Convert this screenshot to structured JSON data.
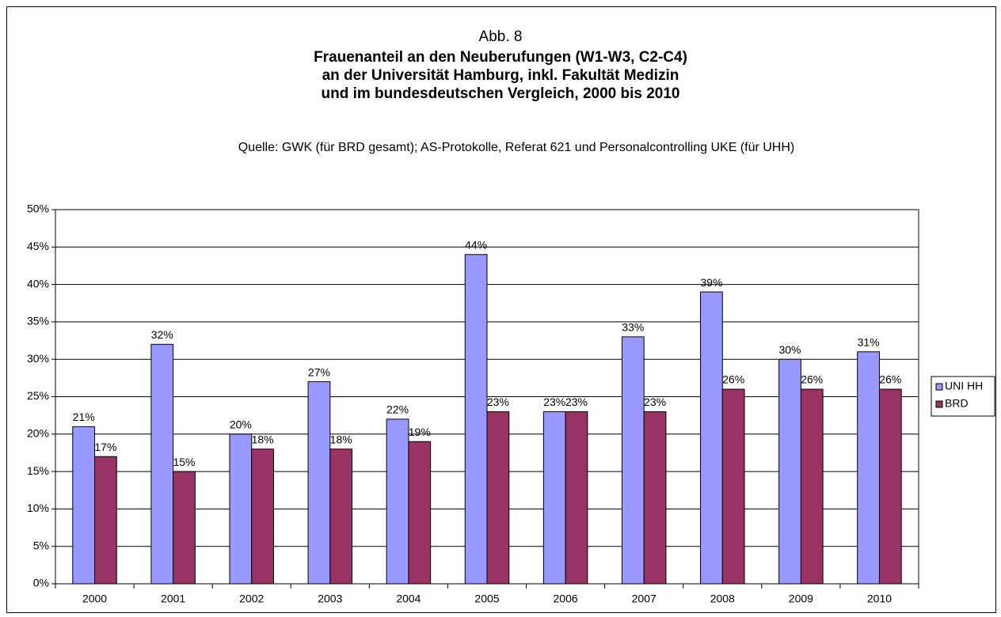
{
  "chart_data": {
    "type": "bar",
    "title": "Abb. 8",
    "subtitle": [
      "Frauenanteil an den Neuberufungen (W1-W3, C2-C4)",
      "an der Universität Hamburg, inkl. Fakultät Medizin",
      "und im bundesdeutschen Vergleich, 2000 bis 2010"
    ],
    "source": "Quelle: GWK (für BRD gesamt); AS-Protokolle, Referat 621 und Personalcontrolling UKE (für UHH)",
    "categories": [
      "2000",
      "2001",
      "2002",
      "2003",
      "2004",
      "2005",
      "2006",
      "2007",
      "2008",
      "2009",
      "2010"
    ],
    "series": [
      {
        "name": "UNI HH",
        "color": "#9999ff",
        "values": [
          21,
          32,
          20,
          27,
          22,
          44,
          23,
          33,
          39,
          30,
          31
        ],
        "value_labels": [
          "21%",
          "32%",
          "20%",
          "27%",
          "22%",
          "44%",
          "23%",
          "33%",
          "39%",
          "30%",
          "31%"
        ]
      },
      {
        "name": "BRD",
        "color": "#993366",
        "values": [
          17,
          15,
          18,
          18,
          19,
          23,
          23,
          23,
          26,
          26,
          26
        ],
        "value_labels": [
          "17%",
          "15%",
          "18%",
          "18%",
          "19%",
          "23%",
          "23%",
          "23%",
          "26%",
          "26%",
          "26%"
        ]
      }
    ],
    "ylim": [
      0,
      50
    ],
    "yticks": [
      {
        "value": 0,
        "label": "0%"
      },
      {
        "value": 5,
        "label": "5%"
      },
      {
        "value": 10,
        "label": "10%"
      },
      {
        "value": 15,
        "label": "15%"
      },
      {
        "value": 20,
        "label": "20%"
      },
      {
        "value": 25,
        "label": "25%"
      },
      {
        "value": 30,
        "label": "30%"
      },
      {
        "value": 35,
        "label": "35%"
      },
      {
        "value": 40,
        "label": "40%"
      },
      {
        "value": 45,
        "label": "45%"
      },
      {
        "value": 50,
        "label": "50%"
      }
    ],
    "grid": true,
    "legend": "right"
  }
}
